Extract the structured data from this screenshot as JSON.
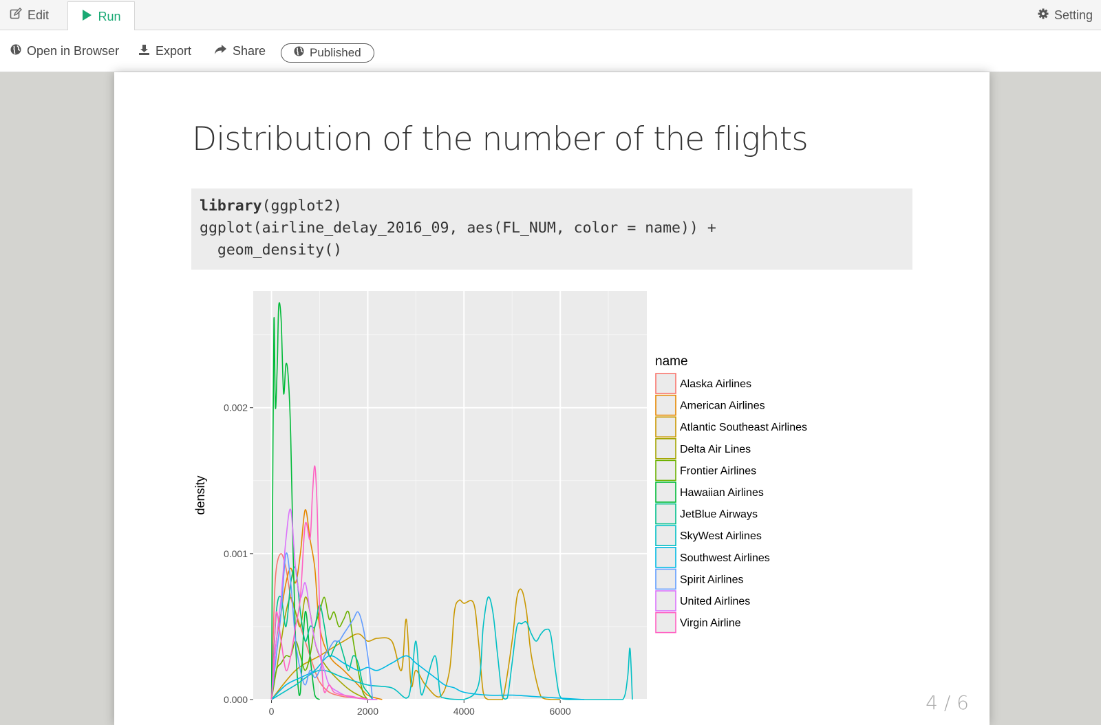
{
  "tabbar": {
    "edit_label": "Edit",
    "run_label": "Run",
    "setting_label": "Setting"
  },
  "toolbar": {
    "open_label": "Open in Browser",
    "export_label": "Export",
    "share_label": "Share",
    "published_label": "Published"
  },
  "slide": {
    "title": "Distribution of the number of the flights",
    "code_line1_kw": "library",
    "code_line1_rest": "(ggplot2)",
    "code_line2": "ggplot(airline_delay_2016_09, aes(FL_NUM, color = name)) +",
    "code_line3": "  geom_density()",
    "page_number": "4 / 6"
  },
  "colors": {
    "run_accent": "#19a974",
    "panel_bg": "#ebebeb"
  },
  "icons": {
    "edit": "pencil-square-icon",
    "run": "play-icon",
    "setting": "gear-icon",
    "open": "globe-icon",
    "export": "download-icon",
    "share": "share-arrow-icon",
    "published": "globe-icon"
  },
  "chart_data": {
    "type": "line",
    "xlabel": "",
    "ylabel": "density",
    "xlim": [
      -380,
      7800
    ],
    "ylim": [
      0,
      0.0028
    ],
    "x_ticks": [
      0,
      2000,
      4000,
      6000
    ],
    "x_tick_labels": [
      "0",
      "2000",
      "4000",
      "6000"
    ],
    "y_ticks": [
      0,
      0.001,
      0.002
    ],
    "y_tick_labels": [
      "0.000",
      "0.001",
      "0.002"
    ],
    "grid": true,
    "legend_title": "name",
    "legend_position": "right",
    "series": [
      {
        "name": "Alaska Airlines",
        "color": "#F8766D",
        "x": [
          0,
          50,
          100,
          200,
          300,
          400,
          500,
          600,
          700,
          800,
          900,
          1000,
          1200,
          1500,
          1800,
          2000,
          2200
        ],
        "y": [
          0,
          0.0006,
          0.0009,
          0.001,
          0.0009,
          0.0007,
          0.0006,
          0.0005,
          0.0004,
          0.0003,
          0.0002,
          0.00012,
          5e-05,
          2e-05,
          1e-05,
          0,
          0
        ]
      },
      {
        "name": "American Airlines",
        "color": "#E58700",
        "x": [
          0,
          100,
          200,
          300,
          400,
          500,
          600,
          700,
          800,
          900,
          1000,
          1200,
          1500,
          1800,
          2000,
          2300
        ],
        "y": [
          0,
          0.0004,
          0.0006,
          0.0008,
          0.0009,
          0.0008,
          0.001,
          0.0013,
          0.0011,
          0.0009,
          0.0005,
          0.0003,
          0.0002,
          0.0001,
          3e-05,
          0
        ]
      },
      {
        "name": "Atlantic Southeast Airlines",
        "color": "#C99800",
        "x": [
          0,
          500,
          1000,
          1500,
          1800,
          2000,
          2200,
          2500,
          2700,
          2800,
          2900,
          3000,
          3200,
          3500,
          3700,
          3800,
          3900,
          4000,
          4200,
          4300,
          4400,
          4500,
          4600,
          4800,
          5000,
          5100,
          5200,
          5300,
          5400,
          5600,
          5800,
          6000
        ],
        "y": [
          0,
          0.0002,
          0.0003,
          0.0004,
          0.00045,
          0.0004,
          0.00042,
          0.0004,
          0.0002,
          0.00055,
          0.0001,
          0.0002,
          0.0001,
          2e-05,
          0.0002,
          0.0006,
          0.00068,
          0.00066,
          0.00066,
          0.0004,
          5e-05,
          0,
          0,
          0,
          0.0004,
          0.0007,
          0.00075,
          0.0006,
          0.0003,
          2e-05,
          0,
          0
        ]
      },
      {
        "name": "Delta Air Lines",
        "color": "#A3A500",
        "x": [
          0,
          100,
          200,
          300,
          400,
          500,
          600,
          700,
          800,
          900,
          1000,
          1200,
          1500,
          1700,
          2000
        ],
        "y": [
          0,
          0.0002,
          0.0004,
          0.0006,
          0.0007,
          0.0006,
          0.0005,
          0.0007,
          0.0006,
          0.0004,
          0.0003,
          0.0002,
          0.0001,
          5e-05,
          0
        ]
      },
      {
        "name": "Frontier Airlines",
        "color": "#6BB100",
        "x": [
          0,
          100,
          200,
          300,
          400,
          500,
          600,
          700,
          800,
          900,
          1000,
          1100,
          1200,
          1300,
          1400,
          1500,
          1600,
          1700,
          1800,
          1900,
          2000
        ],
        "y": [
          0,
          0.0002,
          0.00025,
          0.0003,
          0.0003,
          0.0004,
          0.0003,
          0.0002,
          0.0003,
          0.0005,
          0.0006,
          0.0007,
          0.00055,
          0.0006,
          0.0005,
          0.00055,
          0.0006,
          0.0004,
          0.0002,
          5e-05,
          0
        ]
      },
      {
        "name": "Hawaiian Airlines",
        "color": "#00BA38",
        "x": [
          0,
          20,
          50,
          80,
          120,
          150,
          200,
          250,
          300,
          350,
          400,
          450,
          500,
          550,
          600,
          700,
          800,
          900,
          1000
        ],
        "y": [
          0,
          0.0012,
          0.0026,
          0.002,
          0.0023,
          0.0027,
          0.0026,
          0.0021,
          0.0023,
          0.0022,
          0.0018,
          0.001,
          0.0004,
          0.0001,
          5e-05,
          0.0006,
          0.0003,
          3e-05,
          0
        ]
      },
      {
        "name": "JetBlue Airways",
        "color": "#00C08B",
        "x": [
          0,
          100,
          200,
          300,
          400,
          500,
          600,
          700,
          800,
          900,
          1000,
          1100,
          1200,
          1300,
          1400,
          1500,
          1600,
          1700,
          1800,
          1900,
          2000,
          2100
        ],
        "y": [
          0,
          0.0006,
          0.0007,
          0.0005,
          0.0008,
          0.0009,
          0.0006,
          0.0004,
          0.0005,
          0.0005,
          0.00065,
          0.0005,
          0.0003,
          0.00035,
          0.0004,
          0.0003,
          0.0002,
          0.0003,
          0.00025,
          0.0001,
          5e-05,
          0
        ]
      },
      {
        "name": "SkyWest Airlines",
        "color": "#00BFC4",
        "x": [
          0,
          500,
          1000,
          1500,
          2000,
          2500,
          2800,
          2900,
          3000,
          3100,
          3200,
          3400,
          3500,
          3600,
          4000,
          4300,
          4400,
          4500,
          4600,
          4700,
          4800,
          4900,
          5000,
          5100,
          5200,
          5300,
          5400,
          5500,
          5600,
          5700,
          5800,
          5900,
          6000,
          6200,
          7000,
          7300,
          7400,
          7450,
          7500
        ],
        "y": [
          0,
          0.0001,
          0.0002,
          0.00015,
          0.0001,
          8e-05,
          1e-05,
          0.0001,
          0.0004,
          5e-05,
          0.0001,
          0.0003,
          5e-05,
          1e-05,
          0,
          0.0001,
          0.0005,
          0.0007,
          0.0006,
          0.0003,
          2e-05,
          1e-05,
          0.00025,
          0.0005,
          0.00052,
          0.00053,
          0.00045,
          0.0004,
          0.00045,
          0.00048,
          0.00045,
          0.0002,
          2e-05,
          0,
          0,
          0,
          0.00015,
          0.00035,
          0
        ]
      },
      {
        "name": "Southwest Airlines",
        "color": "#00B9E3",
        "x": [
          0,
          300,
          600,
          900,
          1200,
          1500,
          1800,
          2000,
          2200,
          2500,
          2800,
          3000,
          3200,
          3400,
          3600,
          3800,
          4000,
          4500,
          5000,
          5500,
          6000,
          6500
        ],
        "y": [
          0,
          0.0001,
          0.00015,
          0.0002,
          0.0003,
          0.00025,
          0.0002,
          0.00022,
          0.0002,
          0.00025,
          0.0003,
          0.00025,
          0.0002,
          0.00015,
          0.0001,
          8e-05,
          5e-05,
          3e-05,
          3e-05,
          2e-05,
          1e-05,
          0
        ]
      },
      {
        "name": "Spirit Airlines",
        "color": "#619CFF",
        "x": [
          0,
          100,
          200,
          300,
          400,
          500,
          600,
          700,
          800,
          900,
          1000,
          1100,
          1200,
          1300,
          1400,
          1500,
          1600,
          1700,
          1800,
          1900,
          2000,
          2100
        ],
        "y": [
          0,
          0.0003,
          0.0006,
          0.001,
          0.0008,
          0.0004,
          0.0002,
          0.0001,
          0.0002,
          0.00015,
          0.0002,
          0.0003,
          0.00035,
          0.0004,
          0.0004,
          0.00045,
          0.0005,
          0.00055,
          0.0006,
          0.0005,
          0.0003,
          0
        ]
      },
      {
        "name": "United Airlines",
        "color": "#DB72FB",
        "x": [
          0,
          100,
          200,
          300,
          400,
          500,
          600,
          700,
          800,
          900,
          1000,
          1100,
          1200,
          1400,
          1600,
          1800,
          2000,
          2200
        ],
        "y": [
          0,
          0.0004,
          0.0007,
          0.0011,
          0.0013,
          0.0009,
          0.0007,
          0.0008,
          0.0006,
          0.0004,
          0.0003,
          0.0002,
          0.0001,
          5e-05,
          2e-05,
          1e-05,
          0,
          0
        ]
      },
      {
        "name": "Virgin Airline",
        "color": "#FF61C3",
        "x": [
          0,
          50,
          100,
          200,
          300,
          400,
          500,
          600,
          700,
          800,
          850,
          900,
          950,
          1000,
          1050,
          1100,
          1200,
          1300,
          1500,
          1700,
          1800,
          1900,
          2000
        ],
        "y": [
          0,
          0.0003,
          0.0006,
          0.0004,
          0.0002,
          0.0003,
          0.0005,
          0.0007,
          0.0012,
          0.0011,
          0.0014,
          0.0016,
          0.0013,
          0.0006,
          0.0002,
          5e-05,
          0.0001,
          5e-05,
          3e-05,
          2e-05,
          1e-05,
          1e-05,
          0
        ]
      }
    ]
  }
}
